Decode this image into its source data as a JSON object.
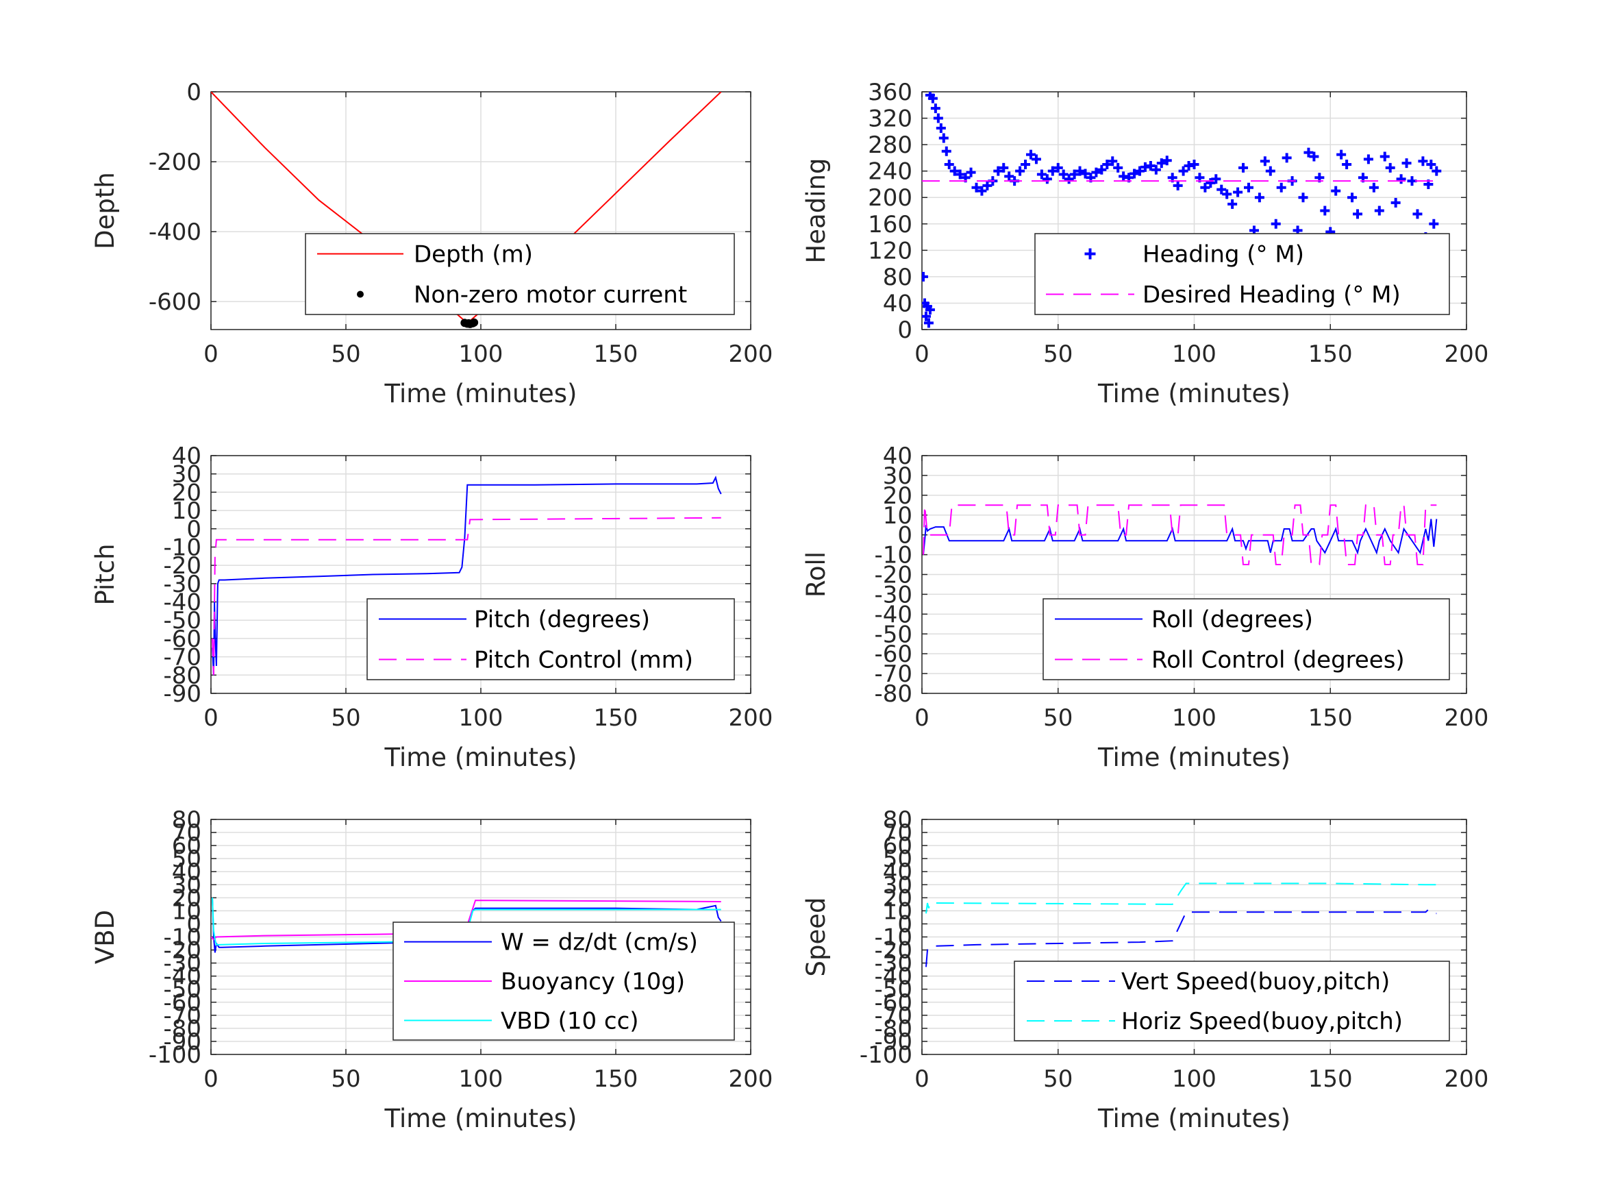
{
  "chart_data": [
    {
      "id": "depth",
      "type": "line",
      "xlabel": "Time (minutes)",
      "ylabel": "Depth",
      "xlim": [
        0,
        200
      ],
      "ylim": [
        -680,
        0
      ],
      "xticks": [
        0,
        50,
        100,
        150,
        200
      ],
      "yticks": [
        -600,
        -400,
        -200,
        0
      ],
      "grid": true,
      "legend": "bottom-right",
      "series": [
        {
          "name": "Depth (m)",
          "style": "line",
          "color": "#ff0000",
          "x": [
            0,
            20,
            40,
            60,
            80,
            95,
            110,
            130,
            150,
            170,
            189
          ],
          "y": [
            0,
            -160,
            -310,
            -430,
            -560,
            -662,
            -560,
            -440,
            -290,
            -140,
            0
          ]
        },
        {
          "name": "Non-zero motor current",
          "style": "dot",
          "color": "#000000",
          "x": [
            94,
            95,
            95.5,
            96,
            97,
            97.5
          ],
          "y": [
            -661,
            -663,
            -662,
            -664,
            -662,
            -660
          ]
        }
      ]
    },
    {
      "id": "heading",
      "type": "scatter",
      "xlabel": "Time (minutes)",
      "ylabel": "Heading",
      "xlim": [
        0,
        200
      ],
      "ylim": [
        0,
        360
      ],
      "xticks": [
        0,
        50,
        100,
        150,
        200
      ],
      "yticks": [
        0,
        40,
        80,
        120,
        160,
        200,
        240,
        280,
        320,
        360
      ],
      "grid": true,
      "legend": "bottom-right",
      "series": [
        {
          "name": "Heading (° M)",
          "style": "plus",
          "color": "#0000ff",
          "x": [
            0.5,
            1,
            1.5,
            2,
            2.5,
            3,
            3,
            4,
            5,
            6,
            7,
            8,
            9,
            10,
            12,
            14,
            16,
            18,
            20,
            22,
            24,
            26,
            28,
            30,
            32,
            34,
            36,
            38,
            40,
            42,
            44,
            46,
            48,
            50,
            52,
            54,
            56,
            58,
            60,
            62,
            64,
            66,
            68,
            70,
            72,
            74,
            76,
            78,
            80,
            82,
            84,
            86,
            88,
            90,
            92,
            94,
            96,
            98,
            100,
            102,
            104,
            106,
            108,
            110,
            112,
            114,
            116,
            118,
            120,
            122,
            124,
            126,
            128,
            130,
            132,
            134,
            136,
            138,
            140,
            142,
            144,
            146,
            148,
            150,
            152,
            154,
            156,
            158,
            160,
            162,
            164,
            166,
            168,
            170,
            172,
            174,
            176,
            178,
            180,
            182,
            184,
            185,
            186,
            187,
            188,
            189
          ],
          "y": [
            80,
            40,
            20,
            35,
            10,
            30,
            355,
            350,
            335,
            320,
            305,
            290,
            270,
            250,
            240,
            235,
            230,
            238,
            215,
            210,
            218,
            225,
            240,
            245,
            232,
            225,
            240,
            250,
            265,
            258,
            235,
            228,
            240,
            245,
            235,
            228,
            235,
            240,
            236,
            230,
            238,
            242,
            250,
            255,
            245,
            232,
            230,
            236,
            240,
            246,
            248,
            242,
            252,
            256,
            230,
            218,
            240,
            248,
            250,
            230,
            215,
            222,
            228,
            212,
            205,
            190,
            208,
            245,
            215,
            150,
            200,
            255,
            240,
            160,
            215,
            260,
            225,
            150,
            200,
            268,
            262,
            230,
            180,
            148,
            210,
            265,
            250,
            200,
            175,
            230,
            258,
            215,
            180,
            262,
            245,
            192,
            228,
            252,
            225,
            175,
            255,
            140,
            220,
            250,
            160,
            240
          ]
        },
        {
          "name": "Desired Heading (° M)",
          "style": "dash",
          "color": "#ff00ff",
          "x": [
            0,
            189
          ],
          "y": [
            225,
            225
          ]
        }
      ]
    },
    {
      "id": "pitch",
      "type": "line",
      "xlabel": "Time (minutes)",
      "ylabel": "Pitch",
      "xlim": [
        0,
        200
      ],
      "ylim": [
        -90,
        40
      ],
      "xticks": [
        0,
        50,
        100,
        150,
        200
      ],
      "yticks": [
        -90,
        -80,
        -70,
        -60,
        -50,
        -40,
        -30,
        -20,
        -10,
        0,
        10,
        20,
        30,
        40
      ],
      "grid": true,
      "legend": "bottom-right",
      "series": [
        {
          "name": "Pitch (degrees)",
          "style": "line",
          "color": "#0000ff",
          "x": [
            0.5,
            1,
            1.3,
            1.6,
            2,
            2.5,
            3,
            5,
            20,
            40,
            60,
            80,
            92,
            93,
            94,
            95,
            96,
            120,
            150,
            180,
            186,
            187,
            188,
            189
          ],
          "y": [
            -65,
            -80,
            -40,
            -60,
            -75,
            -30,
            -28,
            -28,
            -27,
            -26,
            -25,
            -24.5,
            -24,
            -21,
            -5,
            24,
            24,
            24,
            24.5,
            24.5,
            25,
            28,
            22,
            19
          ]
        },
        {
          "name": "Pitch Control (mm)",
          "style": "dash",
          "color": "#ff00ff",
          "x": [
            0.5,
            1,
            1.5,
            2,
            95,
            96,
            189
          ],
          "y": [
            -60,
            -80,
            -15,
            -6,
            -6,
            5,
            6
          ]
        }
      ]
    },
    {
      "id": "roll",
      "type": "line",
      "xlabel": "Time (minutes)",
      "ylabel": "Roll",
      "xlim": [
        0,
        200
      ],
      "ylim": [
        -80,
        40
      ],
      "xticks": [
        0,
        50,
        100,
        150,
        200
      ],
      "yticks": [
        -80,
        -70,
        -60,
        -50,
        -40,
        -30,
        -20,
        -10,
        0,
        10,
        20,
        30,
        40
      ],
      "grid": true,
      "legend": "bottom-right",
      "series": [
        {
          "name": "Roll (degrees)",
          "style": "line",
          "color": "#0000ff",
          "x": [
            0.5,
            1,
            1.5,
            2,
            3,
            5,
            8,
            10,
            11,
            30,
            32,
            33,
            45,
            47,
            48,
            56,
            58,
            59,
            72,
            74,
            75,
            90,
            92,
            93,
            112,
            114,
            115,
            118,
            119,
            120,
            123,
            127,
            128,
            129,
            132,
            133,
            135,
            136,
            140,
            143,
            144,
            145,
            148,
            150,
            152,
            153,
            158,
            160,
            161,
            163,
            165,
            167,
            168,
            170,
            172,
            175,
            176,
            177,
            180,
            183,
            184,
            185,
            186,
            187,
            188,
            189
          ],
          "y": [
            -10,
            -3,
            5,
            2,
            3,
            4,
            4,
            -3,
            -3,
            -3,
            3,
            -3,
            -3,
            3,
            -3,
            -3,
            3,
            -3,
            -3,
            3,
            -3,
            -3,
            3,
            -3,
            -3,
            3,
            -3,
            -3,
            -7,
            -3,
            -3,
            -3,
            -9,
            -3,
            -3,
            3,
            3,
            -3,
            -3,
            3,
            3,
            -3,
            -9,
            -3,
            3,
            -3,
            -3,
            -9,
            -3,
            3,
            -3,
            -9,
            -3,
            3,
            -3,
            -9,
            -3,
            3,
            -3,
            -9,
            -3,
            3,
            -3,
            8,
            -6,
            8
          ]
        },
        {
          "name": "Roll Control (degrees)",
          "style": "dash",
          "color": "#ff00ff",
          "x": [
            0.5,
            1,
            2,
            3,
            10,
            11,
            31,
            32,
            34,
            35,
            46,
            47,
            49,
            50,
            57,
            58,
            60,
            61,
            72,
            73,
            75,
            76,
            91,
            92,
            94,
            95,
            111,
            112,
            114,
            115,
            117,
            118,
            120,
            121,
            129,
            130,
            132,
            133,
            136,
            137,
            139,
            140,
            142,
            143,
            146,
            147,
            149,
            150,
            152,
            153,
            155,
            156,
            159,
            160,
            162,
            163,
            166,
            167,
            169,
            170,
            172,
            173,
            175,
            176,
            177,
            178,
            181,
            182,
            184,
            185,
            189
          ],
          "y": [
            -10,
            15,
            0,
            0,
            0,
            15,
            15,
            0,
            0,
            15,
            15,
            0,
            0,
            15,
            15,
            0,
            0,
            15,
            15,
            0,
            0,
            15,
            15,
            0,
            0,
            15,
            15,
            0,
            0,
            0,
            0,
            -15,
            -15,
            0,
            0,
            -15,
            -15,
            0,
            0,
            15,
            15,
            0,
            0,
            -15,
            -15,
            0,
            0,
            15,
            15,
            0,
            0,
            -15,
            -15,
            0,
            0,
            15,
            15,
            0,
            0,
            -15,
            -15,
            0,
            0,
            15,
            15,
            0,
            0,
            -15,
            -15,
            15,
            15
          ]
        }
      ]
    },
    {
      "id": "vbd",
      "type": "line",
      "xlabel": "Time (minutes)",
      "ylabel": "VBD",
      "xlim": [
        0,
        200
      ],
      "ylim": [
        -100,
        80
      ],
      "xticks": [
        0,
        50,
        100,
        150,
        200
      ],
      "yticks": [
        -100,
        -90,
        -80,
        -70,
        -60,
        -50,
        -40,
        -30,
        -20,
        -10,
        0,
        10,
        20,
        30,
        40,
        50,
        60,
        70,
        80
      ],
      "grid": true,
      "legend": "bottom-right",
      "series": [
        {
          "name": "W = dz/dt (cm/s)",
          "style": "line",
          "color": "#0000ff",
          "x": [
            0.5,
            1,
            1.5,
            2,
            3,
            4,
            20,
            40,
            60,
            80,
            92,
            95,
            97,
            98,
            120,
            150,
            180,
            187,
            188,
            189
          ],
          "y": [
            20,
            -10,
            -22,
            -15,
            -18,
            -18,
            -17,
            -16,
            -15,
            -14,
            -14,
            -5,
            10,
            12,
            12,
            12,
            11,
            14,
            5,
            2
          ]
        },
        {
          "name": "Buoyancy (10g)",
          "style": "line",
          "color": "#ff00ff",
          "x": [
            0,
            1,
            2,
            20,
            60,
            94,
            98,
            189
          ],
          "y": [
            -10,
            -12,
            -10,
            -9,
            -8,
            -7,
            18,
            17
          ]
        },
        {
          "name": "VBD (10 cc)",
          "style": "line",
          "color": "#00ffff",
          "x": [
            0.5,
            1,
            1.5,
            2,
            3,
            20,
            60,
            94,
            97,
            98,
            189
          ],
          "y": [
            20,
            -5,
            -12,
            -16,
            -16,
            -15,
            -14,
            -13,
            10,
            11,
            11
          ]
        }
      ]
    },
    {
      "id": "speed",
      "type": "line",
      "xlabel": "Time (minutes)",
      "ylabel": "Speed",
      "xlim": [
        0,
        200
      ],
      "ylim": [
        -100,
        80
      ],
      "xticks": [
        0,
        50,
        100,
        150,
        200
      ],
      "yticks": [
        -100,
        -90,
        -80,
        -70,
        -60,
        -50,
        -40,
        -30,
        -20,
        -10,
        0,
        10,
        20,
        30,
        40,
        50,
        60,
        70,
        80
      ],
      "grid": true,
      "legend": "bottom-right",
      "series": [
        {
          "name": "Vert Speed(buoy,pitch)",
          "style": "dash",
          "color": "#0000ff",
          "x": [
            1.5,
            2,
            2.5,
            3,
            5,
            20,
            50,
            80,
            92,
            95,
            97,
            120,
            150,
            185,
            186,
            188,
            189
          ],
          "y": [
            -33,
            -20,
            -18,
            -18,
            -17,
            -16,
            -15,
            -14,
            -13,
            0,
            9,
            9,
            9,
            9,
            11,
            8,
            8
          ]
        },
        {
          "name": "Horiz Speed(buoy,pitch)",
          "style": "dash",
          "color": "#00ffff",
          "x": [
            1.5,
            2,
            2.5,
            3,
            50,
            92,
            95,
            97,
            120,
            150,
            185,
            186,
            189
          ],
          "y": [
            8,
            16,
            12,
            16,
            15.5,
            15,
            25,
            31,
            31,
            31,
            30,
            30,
            30
          ]
        }
      ]
    }
  ]
}
